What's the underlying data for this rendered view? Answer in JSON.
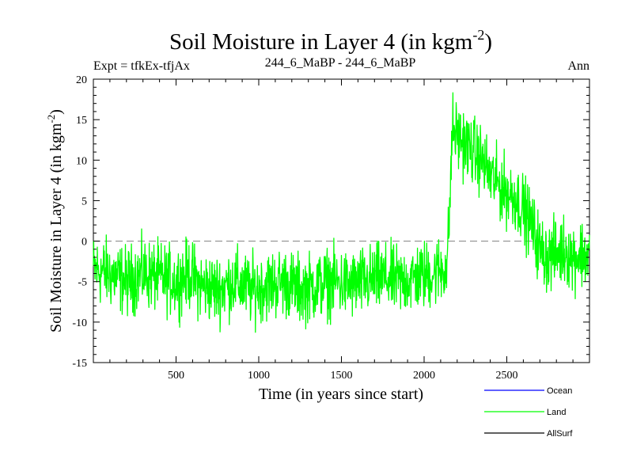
{
  "chart_data": {
    "type": "line",
    "title": "Soil Moisture in Layer 4 (in kgm",
    "title_superscript": "-2",
    "title_close": ")",
    "subtitle_left": "Expt = tfkEx-tfjAx",
    "subtitle_center": "244_6_MaBP - 244_6_MaBP",
    "subtitle_right": "Ann",
    "xlabel": "Time (in years since start)",
    "ylabel": "Soil Moisture in Layer 4 (in kgm",
    "ylabel_superscript": "-2",
    "ylabel_close": ")",
    "xlim": [
      0,
      3000
    ],
    "ylim": [
      -15,
      20
    ],
    "x_ticks": [
      500,
      1000,
      1500,
      2000,
      2500
    ],
    "y_ticks": [
      -15,
      -10,
      -5,
      0,
      5,
      10,
      15,
      20
    ],
    "reference_line": {
      "y": 0,
      "style": "dashed",
      "color": "#808080"
    },
    "legend_position": "bottom-right",
    "series": [
      {
        "name": "Ocean",
        "color": "#0000ff",
        "values": []
      },
      {
        "name": "Land",
        "color": "#00ff00",
        "x": [
          0,
          100,
          200,
          300,
          400,
          500,
          580,
          650,
          750,
          850,
          950,
          1050,
          1150,
          1250,
          1350,
          1450,
          1550,
          1650,
          1750,
          1850,
          1950,
          2050,
          2100,
          2140,
          2160,
          2170,
          2200,
          2250,
          2300,
          2350,
          2400,
          2450,
          2500,
          2550,
          2600,
          2650,
          2700,
          2750,
          2800,
          2850,
          2900,
          2950,
          3000
        ],
        "values": [
          -3.5,
          -4,
          -5,
          -4,
          -4.5,
          -5,
          -4,
          -5.5,
          -6,
          -5,
          -6,
          -5.5,
          -5,
          -6,
          -5.5,
          -5,
          -5.5,
          -5,
          -4.5,
          -5,
          -4.5,
          -4,
          -3.5,
          -3,
          7,
          14,
          13,
          12,
          11,
          10,
          8,
          7,
          6,
          5.5,
          4,
          2,
          -1,
          -2,
          -1.5,
          -1,
          -2,
          -1.5,
          -2
        ],
        "noise_amplitude": 3.2
      },
      {
        "name": "AllSurf",
        "color": "#000000",
        "values": []
      }
    ]
  }
}
